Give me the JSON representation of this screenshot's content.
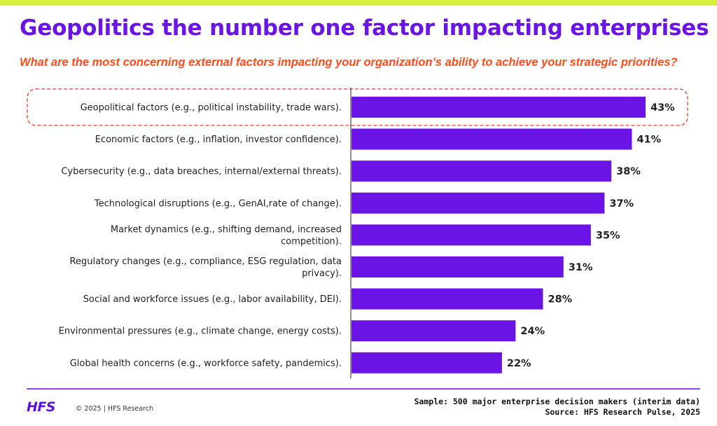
{
  "slide": {
    "title": "Geopolitics the number one factor impacting enterprises",
    "subtitle": "What are the most concerning external factors impacting your organization’s ability to achieve your strategic priorities?"
  },
  "colors": {
    "bar": "#6a14e6",
    "title": "#6a14e6",
    "subtitle": "#ff4a1a",
    "highlight_outline": "#e8402a",
    "top_stripe": "#d7ee3a"
  },
  "chart_data": {
    "type": "bar",
    "orientation": "horizontal",
    "categories": [
      [
        "Geopolitical factors (e.g., political instability, trade wars)."
      ],
      [
        "Economic factors (e.g., inflation, investor confidence)."
      ],
      [
        "Cybersecurity (e.g., data breaches, internal/external threats)."
      ],
      [
        "Technological disruptions (e.g., GenAI,rate of change)."
      ],
      [
        "Market dynamics (e.g., shifting demand, increased",
        "competition)."
      ],
      [
        "Regulatory changes (e.g., compliance, ESG regulation, data",
        "privacy)."
      ],
      [
        "Social and workforce issues (e.g., labor availability, DEI)."
      ],
      [
        "Environmental pressures (e.g., climate change, energy costs)."
      ],
      [
        "Global health concerns (e.g., workforce safety, pandemics)."
      ]
    ],
    "values": [
      43,
      41,
      38,
      37,
      35,
      31,
      28,
      24,
      22
    ],
    "value_suffix": "%",
    "highlighted_index": 0,
    "xlim": [
      0,
      43
    ],
    "grid": false,
    "legend": "none"
  },
  "footer": {
    "logo_text": "HFS",
    "copyright": "© 2025 | HFS Research",
    "sample": "Sample: 500 major enterprise decision makers (interim data)",
    "source": "Source: HFS Research Pulse, 2025"
  }
}
